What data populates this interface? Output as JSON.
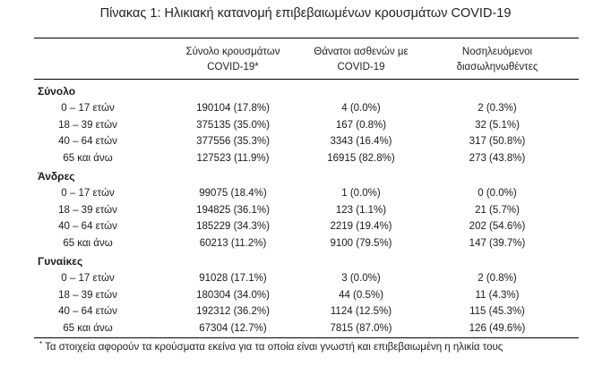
{
  "title": "Πίνακας 1: Ηλικιακή κατανομή επιβεβαιωμένων κρουσμάτων COVID-19",
  "headers": {
    "col1_line1": "Σύνολο κρουσμάτων",
    "col1_line2": "COVID-19*",
    "col2_line1": "Θάνατοι ασθενών με",
    "col2_line2": "COVID-19",
    "col3_line1": "Νοσηλευόμενοι",
    "col3_line2": "διασωληνωθέντες"
  },
  "sections": [
    {
      "title": "Σύνολο",
      "rows": [
        {
          "label": "0 – 17 ετών",
          "cases": "190104 (17.8%)",
          "deaths": "4 (0.0%)",
          "intubated": "2 (0.3%)"
        },
        {
          "label": "18 – 39 ετών",
          "cases": "375135 (35.0%)",
          "deaths": "167 (0.8%)",
          "intubated": "32 (5.1%)"
        },
        {
          "label": "40 – 64 ετών",
          "cases": "377556 (35.3%)",
          "deaths": "3343 (16.4%)",
          "intubated": "317 (50.8%)"
        },
        {
          "label": "65 και άνω",
          "cases": "127523 (11.9%)",
          "deaths": "16915 (82.8%)",
          "intubated": "273 (43.8%)"
        }
      ]
    },
    {
      "title": "Άνδρες",
      "rows": [
        {
          "label": "0 – 17 ετών",
          "cases": "99075 (18.4%)",
          "deaths": "1 (0.0%)",
          "intubated": "0 (0.0%)"
        },
        {
          "label": "18 – 39 ετών",
          "cases": "194825 (36.1%)",
          "deaths": "123 (1.1%)",
          "intubated": "21 (5.7%)"
        },
        {
          "label": "40 – 64 ετών",
          "cases": "185229 (34.3%)",
          "deaths": "2219 (19.4%)",
          "intubated": "202 (54.6%)"
        },
        {
          "label": "65 και άνω",
          "cases": "60213 (11.2%)",
          "deaths": "9100 (79.5%)",
          "intubated": "147 (39.7%)"
        }
      ]
    },
    {
      "title": "Γυναίκες",
      "rows": [
        {
          "label": "0 – 17 ετών",
          "cases": "91028 (17.1%)",
          "deaths": "3 (0.0%)",
          "intubated": "2 (0.8%)"
        },
        {
          "label": "18 – 39 ετών",
          "cases": "180304 (34.0%)",
          "deaths": "44 (0.5%)",
          "intubated": "11 (4.3%)"
        },
        {
          "label": "40 – 64 ετών",
          "cases": "192312 (36.2%)",
          "deaths": "1124 (12.5%)",
          "intubated": "115 (45.3%)"
        },
        {
          "label": "65 και άνω",
          "cases": "67304 (12.7%)",
          "deaths": "7815 (87.0%)",
          "intubated": "126 (49.6%)"
        }
      ]
    }
  ],
  "footnote": {
    "marker": "*",
    "text": "Τα στοιχεία αφορούν τα κρούσματα εκείνα για τα οποία είναι γνωστή και επιβεβαιωμένη η ηλικία τους"
  }
}
